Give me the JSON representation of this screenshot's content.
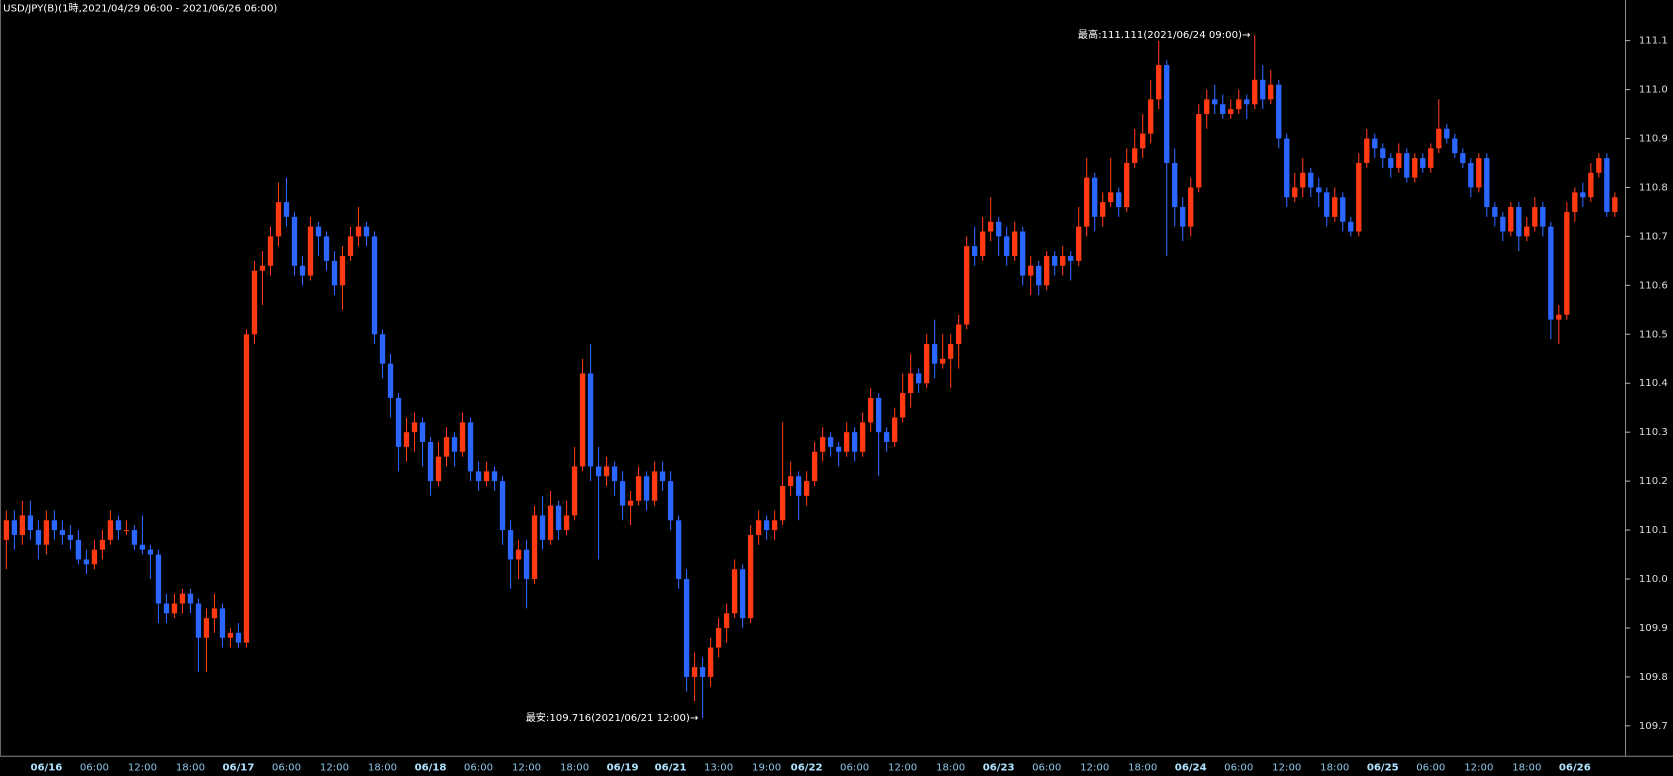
{
  "chart_data": {
    "type": "candlestick",
    "title": "USD/JPY(B)(1時,2021/04/29 06:00 - 2021/06/26 06:00)",
    "annotations": {
      "high": "最高:111.111(2021/06/24 09:00)→",
      "low": "最安:109.716(2021/06/21 12:00)→"
    },
    "up_color": "#ff3a12",
    "down_color": "#2a66ff",
    "ylim": [
      109.639,
      111.183
    ],
    "yticks": [
      109.7,
      109.8,
      109.9,
      {
        "value": 110,
        "label": "110.0"
      },
      110.1,
      110.2,
      110.3,
      110.4,
      110.5,
      110.6,
      110.7,
      110.8,
      110.9,
      {
        "value": 111,
        "label": "111.0"
      },
      111.1
    ],
    "categories": [
      null,
      null,
      null,
      null,
      null,
      "06/16",
      null,
      null,
      null,
      null,
      null,
      "06:00",
      null,
      null,
      null,
      null,
      null,
      "12:00",
      null,
      null,
      null,
      null,
      null,
      "18:00",
      null,
      null,
      null,
      null,
      null,
      "06/17",
      null,
      null,
      null,
      null,
      null,
      "06:00",
      null,
      null,
      null,
      null,
      null,
      "12:00",
      null,
      null,
      null,
      null,
      null,
      "18:00",
      null,
      null,
      null,
      null,
      null,
      "06/18",
      null,
      null,
      null,
      null,
      null,
      "06:00",
      null,
      null,
      null,
      null,
      null,
      "12:00",
      null,
      null,
      null,
      null,
      null,
      "18:00",
      null,
      null,
      null,
      null,
      null,
      "06/19",
      null,
      null,
      null,
      null,
      null,
      "06/21",
      null,
      null,
      null,
      null,
      null,
      "13:00",
      null,
      null,
      null,
      null,
      null,
      "19:00",
      null,
      null,
      null,
      null,
      "06/22",
      null,
      null,
      null,
      null,
      null,
      "06:00",
      null,
      null,
      null,
      null,
      null,
      "12:00",
      null,
      null,
      null,
      null,
      null,
      "18:00",
      null,
      null,
      null,
      null,
      null,
      "06/23",
      null,
      null,
      null,
      null,
      null,
      "06:00",
      null,
      null,
      null,
      null,
      null,
      "12:00",
      null,
      null,
      null,
      null,
      null,
      "18:00",
      null,
      null,
      null,
      null,
      null,
      "06/24",
      null,
      null,
      null,
      null,
      null,
      "06:00",
      null,
      null,
      null,
      null,
      null,
      "12:00",
      null,
      null,
      null,
      null,
      null,
      "18:00",
      null,
      null,
      null,
      null,
      null,
      "06/25",
      null,
      null,
      null,
      null,
      null,
      "06:00",
      null,
      null,
      null,
      null,
      null,
      "12:00",
      null,
      null,
      null,
      null,
      null,
      "18:00",
      null,
      null,
      null,
      null,
      null,
      "06/26",
      null,
      null,
      null,
      null,
      null
    ],
    "ohlc": [
      [
        110.08,
        110.14,
        110.02,
        110.12
      ],
      [
        110.12,
        110.14,
        110.06,
        110.09
      ],
      [
        110.09,
        110.16,
        110.07,
        110.13
      ],
      [
        110.13,
        110.16,
        110.08,
        110.1
      ],
      [
        110.1,
        110.12,
        110.04,
        110.07
      ],
      [
        110.07,
        110.14,
        110.05,
        110.12
      ],
      [
        110.12,
        110.14,
        110.08,
        110.1
      ],
      [
        110.1,
        110.12,
        110.07,
        110.09
      ],
      [
        110.09,
        110.11,
        110.06,
        110.08
      ],
      [
        110.08,
        110.1,
        110.03,
        110.04
      ],
      [
        110.04,
        110.06,
        110.01,
        110.03
      ],
      [
        110.03,
        110.08,
        110.02,
        110.06
      ],
      [
        110.06,
        110.1,
        110.04,
        110.08
      ],
      [
        110.08,
        110.14,
        110.07,
        110.12
      ],
      [
        110.12,
        110.13,
        110.08,
        110.1
      ],
      [
        110.1,
        110.12,
        110.09,
        110.1
      ],
      [
        110.1,
        110.11,
        110.06,
        110.07
      ],
      [
        110.07,
        110.13,
        110.05,
        110.06
      ],
      [
        110.06,
        110.07,
        110.0,
        110.05
      ],
      [
        110.05,
        110.06,
        109.91,
        109.95
      ],
      [
        109.95,
        109.97,
        109.91,
        109.93
      ],
      [
        109.93,
        109.97,
        109.92,
        109.95
      ],
      [
        109.95,
        109.98,
        109.93,
        109.97
      ],
      [
        109.97,
        109.98,
        109.93,
        109.95
      ],
      [
        109.95,
        109.96,
        109.81,
        109.88
      ],
      [
        109.88,
        109.94,
        109.81,
        109.92
      ],
      [
        109.92,
        109.97,
        109.89,
        109.94
      ],
      [
        109.94,
        109.95,
        109.86,
        109.88
      ],
      [
        109.88,
        109.9,
        109.86,
        109.89
      ],
      [
        109.89,
        109.91,
        109.86,
        109.87
      ],
      [
        109.87,
        110.51,
        109.86,
        110.5
      ],
      [
        110.5,
        110.65,
        110.48,
        110.63
      ],
      [
        110.63,
        110.67,
        110.56,
        110.64
      ],
      [
        110.64,
        110.72,
        110.62,
        110.7
      ],
      [
        110.7,
        110.81,
        110.68,
        110.77
      ],
      [
        110.77,
        110.82,
        110.72,
        110.74
      ],
      [
        110.74,
        110.75,
        110.62,
        110.64
      ],
      [
        110.64,
        110.66,
        110.6,
        110.62
      ],
      [
        110.62,
        110.74,
        110.61,
        110.72
      ],
      [
        110.72,
        110.73,
        110.66,
        110.7
      ],
      [
        110.7,
        110.71,
        110.63,
        110.65
      ],
      [
        110.65,
        110.67,
        110.58,
        110.6
      ],
      [
        110.6,
        110.68,
        110.55,
        110.66
      ],
      [
        110.66,
        110.72,
        110.65,
        110.7
      ],
      [
        110.7,
        110.76,
        110.68,
        110.72
      ],
      [
        110.72,
        110.73,
        110.68,
        110.7
      ],
      [
        110.7,
        110.71,
        110.48,
        110.5
      ],
      [
        110.5,
        110.51,
        110.41,
        110.44
      ],
      [
        110.44,
        110.46,
        110.33,
        110.37
      ],
      [
        110.37,
        110.38,
        110.22,
        110.27
      ],
      [
        110.27,
        110.33,
        110.24,
        110.3
      ],
      [
        110.3,
        110.34,
        110.26,
        110.32
      ],
      [
        110.32,
        110.33,
        110.23,
        110.28
      ],
      [
        110.28,
        110.29,
        110.17,
        110.2
      ],
      [
        110.2,
        110.28,
        110.19,
        110.25
      ],
      [
        110.25,
        110.31,
        110.23,
        110.29
      ],
      [
        110.29,
        110.3,
        110.23,
        110.26
      ],
      [
        110.26,
        110.34,
        110.25,
        110.32
      ],
      [
        110.32,
        110.33,
        110.2,
        110.22
      ],
      [
        110.22,
        110.24,
        110.18,
        110.2
      ],
      [
        110.2,
        110.24,
        110.19,
        110.22
      ],
      [
        110.22,
        110.23,
        110.18,
        110.2
      ],
      [
        110.2,
        110.21,
        110.07,
        110.1
      ],
      [
        110.1,
        110.12,
        109.98,
        110.04
      ],
      [
        110.04,
        110.08,
        110.0,
        110.06
      ],
      [
        110.06,
        110.08,
        109.94,
        110.0
      ],
      [
        110.0,
        110.15,
        109.99,
        110.13
      ],
      [
        110.13,
        110.17,
        110.06,
        110.08
      ],
      [
        110.08,
        110.18,
        110.07,
        110.15
      ],
      [
        110.15,
        110.16,
        110.08,
        110.1
      ],
      [
        110.1,
        110.16,
        110.09,
        110.13
      ],
      [
        110.13,
        110.27,
        110.12,
        110.23
      ],
      [
        110.23,
        110.45,
        110.22,
        110.42
      ],
      [
        110.42,
        110.48,
        110.2,
        110.23
      ],
      [
        110.23,
        110.27,
        110.04,
        110.21
      ],
      [
        110.21,
        110.25,
        110.19,
        110.23
      ],
      [
        110.23,
        110.24,
        110.17,
        110.2
      ],
      [
        110.2,
        110.22,
        110.12,
        110.15
      ],
      [
        110.15,
        110.18,
        110.11,
        110.16
      ],
      [
        110.16,
        110.23,
        110.15,
        110.21
      ],
      [
        110.21,
        110.22,
        110.14,
        110.16
      ],
      [
        110.16,
        110.24,
        110.15,
        110.22
      ],
      [
        110.22,
        110.24,
        110.18,
        110.2
      ],
      [
        110.2,
        110.22,
        110.1,
        110.12
      ],
      [
        110.12,
        110.13,
        109.98,
        110.0
      ],
      [
        110.0,
        110.02,
        109.77,
        109.8
      ],
      [
        109.8,
        109.85,
        109.75,
        109.82
      ],
      [
        109.82,
        109.84,
        109.716,
        109.8
      ],
      [
        109.8,
        109.88,
        109.78,
        109.86
      ],
      [
        109.86,
        109.92,
        109.84,
        109.9
      ],
      [
        109.9,
        109.95,
        109.87,
        109.93
      ],
      [
        109.93,
        110.04,
        109.92,
        110.02
      ],
      [
        110.02,
        110.03,
        109.9,
        109.92
      ],
      [
        109.92,
        110.11,
        109.91,
        110.09
      ],
      [
        110.09,
        110.14,
        110.07,
        110.12
      ],
      [
        110.12,
        110.13,
        110.08,
        110.1
      ],
      [
        110.1,
        110.14,
        110.08,
        110.12
      ],
      [
        110.12,
        110.32,
        110.11,
        110.19
      ],
      [
        110.19,
        110.24,
        110.17,
        110.21
      ],
      [
        110.21,
        110.22,
        110.12,
        110.17
      ],
      [
        110.17,
        110.22,
        110.15,
        110.2
      ],
      [
        110.2,
        110.28,
        110.19,
        110.26
      ],
      [
        110.26,
        110.31,
        110.24,
        110.29
      ],
      [
        110.29,
        110.3,
        110.25,
        110.27
      ],
      [
        110.27,
        110.28,
        110.23,
        110.26
      ],
      [
        110.26,
        110.32,
        110.25,
        110.3
      ],
      [
        110.3,
        110.31,
        110.24,
        110.26
      ],
      [
        110.26,
        110.34,
        110.25,
        110.32
      ],
      [
        110.32,
        110.39,
        110.3,
        110.37
      ],
      [
        110.37,
        110.38,
        110.21,
        110.3
      ],
      [
        110.3,
        110.31,
        110.26,
        110.28
      ],
      [
        110.28,
        110.35,
        110.27,
        110.33
      ],
      [
        110.33,
        110.42,
        110.32,
        110.38
      ],
      [
        110.38,
        110.46,
        110.35,
        110.42
      ],
      [
        110.42,
        110.43,
        110.38,
        110.4
      ],
      [
        110.4,
        110.5,
        110.39,
        110.48
      ],
      [
        110.48,
        110.53,
        110.41,
        110.44
      ],
      [
        110.44,
        110.5,
        110.43,
        110.45
      ],
      [
        110.45,
        110.5,
        110.39,
        110.48
      ],
      [
        110.48,
        110.54,
        110.43,
        110.52
      ],
      [
        110.52,
        110.7,
        110.51,
        110.68
      ],
      [
        110.68,
        110.72,
        110.64,
        110.66
      ],
      [
        110.66,
        110.74,
        110.65,
        110.71
      ],
      [
        110.71,
        110.78,
        110.69,
        110.73
      ],
      [
        110.73,
        110.74,
        110.66,
        110.7
      ],
      [
        110.7,
        110.72,
        110.64,
        110.66
      ],
      [
        110.66,
        110.73,
        110.65,
        110.71
      ],
      [
        110.71,
        110.72,
        110.6,
        110.62
      ],
      [
        110.62,
        110.66,
        110.58,
        110.64
      ],
      [
        110.64,
        110.65,
        110.58,
        110.6
      ],
      [
        110.6,
        110.67,
        110.59,
        110.66
      ],
      [
        110.66,
        110.67,
        110.62,
        110.64
      ],
      [
        110.64,
        110.68,
        110.62,
        110.66
      ],
      [
        110.66,
        110.67,
        110.61,
        110.65
      ],
      [
        110.65,
        110.76,
        110.64,
        110.72
      ],
      [
        110.72,
        110.86,
        110.7,
        110.82
      ],
      [
        110.82,
        110.83,
        110.71,
        110.74
      ],
      [
        110.74,
        110.79,
        110.72,
        110.77
      ],
      [
        110.77,
        110.86,
        110.76,
        110.79
      ],
      [
        110.79,
        110.8,
        110.74,
        110.76
      ],
      [
        110.76,
        110.88,
        110.75,
        110.85
      ],
      [
        110.85,
        110.92,
        110.84,
        110.88
      ],
      [
        110.88,
        110.95,
        110.86,
        110.91
      ],
      [
        110.91,
        111.02,
        110.89,
        110.98
      ],
      [
        110.98,
        111.1,
        110.96,
        111.05
      ],
      [
        111.05,
        111.06,
        110.66,
        110.85
      ],
      [
        110.85,
        110.88,
        110.72,
        110.76
      ],
      [
        110.76,
        110.78,
        110.69,
        110.72
      ],
      [
        110.72,
        110.82,
        110.7,
        110.8
      ],
      [
        110.8,
        110.97,
        110.79,
        110.95
      ],
      [
        110.95,
        111.0,
        110.92,
        110.98
      ],
      [
        110.98,
        111.01,
        110.95,
        110.97
      ],
      [
        110.97,
        110.99,
        110.94,
        110.95
      ],
      [
        110.95,
        110.98,
        110.94,
        110.96
      ],
      [
        110.96,
        111.0,
        110.95,
        110.98
      ],
      [
        110.98,
        110.99,
        110.94,
        110.97
      ],
      [
        110.97,
        111.111,
        110.96,
        111.02
      ],
      [
        111.02,
        111.05,
        110.96,
        110.98
      ],
      [
        110.98,
        111.04,
        110.97,
        111.01
      ],
      [
        111.01,
        111.02,
        110.88,
        110.9
      ],
      [
        110.9,
        110.91,
        110.76,
        110.78
      ],
      [
        110.78,
        110.83,
        110.77,
        110.8
      ],
      [
        110.8,
        110.86,
        110.78,
        110.83
      ],
      [
        110.83,
        110.84,
        110.78,
        110.8
      ],
      [
        110.8,
        110.82,
        110.76,
        110.79
      ],
      [
        110.79,
        110.8,
        110.72,
        110.74
      ],
      [
        110.74,
        110.8,
        110.73,
        110.78
      ],
      [
        110.78,
        110.79,
        110.71,
        110.73
      ],
      [
        110.73,
        110.74,
        110.7,
        110.71
      ],
      [
        110.71,
        110.87,
        110.7,
        110.85
      ],
      [
        110.85,
        110.92,
        110.84,
        110.9
      ],
      [
        110.9,
        110.91,
        110.86,
        110.88
      ],
      [
        110.88,
        110.89,
        110.84,
        110.86
      ],
      [
        110.86,
        110.87,
        110.82,
        110.84
      ],
      [
        110.84,
        110.89,
        110.83,
        110.87
      ],
      [
        110.87,
        110.88,
        110.81,
        110.82
      ],
      [
        110.82,
        110.87,
        110.81,
        110.86
      ],
      [
        110.86,
        110.87,
        110.83,
        110.84
      ],
      [
        110.84,
        110.89,
        110.83,
        110.88
      ],
      [
        110.88,
        110.98,
        110.87,
        110.92
      ],
      [
        110.92,
        110.93,
        110.89,
        110.9
      ],
      [
        110.9,
        110.91,
        110.86,
        110.87
      ],
      [
        110.87,
        110.88,
        110.84,
        110.85
      ],
      [
        110.85,
        110.86,
        110.78,
        110.8
      ],
      [
        110.8,
        110.87,
        110.79,
        110.86
      ],
      [
        110.86,
        110.87,
        110.74,
        110.76
      ],
      [
        110.76,
        110.77,
        110.72,
        110.74
      ],
      [
        110.74,
        110.75,
        110.69,
        110.71
      ],
      [
        110.71,
        110.77,
        110.7,
        110.76
      ],
      [
        110.76,
        110.77,
        110.67,
        110.7
      ],
      [
        110.7,
        110.74,
        110.69,
        110.72
      ],
      [
        110.72,
        110.78,
        110.71,
        110.76
      ],
      [
        110.76,
        110.77,
        110.7,
        110.72
      ],
      [
        110.72,
        110.73,
        110.49,
        110.53
      ],
      [
        110.53,
        110.56,
        110.48,
        110.54
      ],
      [
        110.54,
        110.77,
        110.53,
        110.75
      ],
      [
        110.75,
        110.8,
        110.73,
        110.79
      ],
      [
        110.79,
        110.81,
        110.76,
        110.78
      ],
      [
        110.78,
        110.85,
        110.77,
        110.83
      ],
      [
        110.83,
        110.87,
        110.82,
        110.86
      ],
      [
        110.86,
        110.87,
        110.74,
        110.75
      ],
      [
        110.75,
        110.79,
        110.74,
        110.78
      ]
    ]
  }
}
